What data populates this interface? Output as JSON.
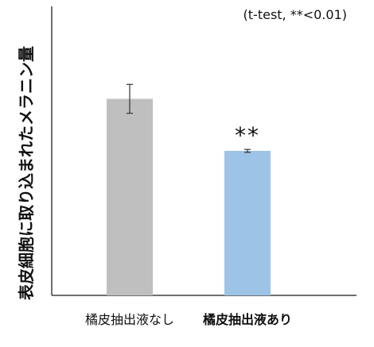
{
  "chart_data": {
    "type": "bar",
    "ylabel": "表皮細胞に取り込まれたメラニン量",
    "annotation": "(t-test, **<0.01)",
    "categories": [
      "橘皮抽出液なし",
      "橘皮抽出液あり"
    ],
    "values": [
      68,
      50
    ],
    "errors": [
      5,
      0.5
    ],
    "significance": [
      "",
      "**"
    ],
    "bar_colors": [
      "#bfbfbf",
      "#9dc3e6"
    ],
    "bold_categories": [
      false,
      true
    ],
    "ylim": [
      0,
      100
    ],
    "grid": false,
    "axis_color": "#404040"
  }
}
